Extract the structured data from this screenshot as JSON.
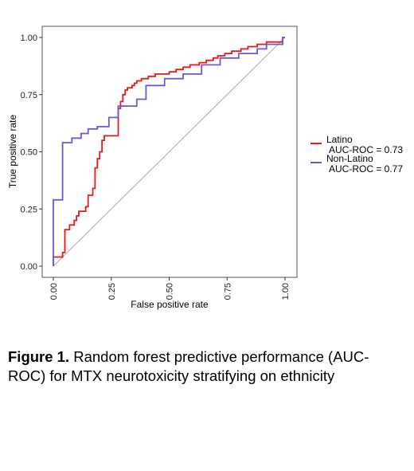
{
  "chart_data": {
    "type": "line",
    "xlabel": "False positive rate",
    "ylabel": "True positive rate",
    "xlim": [
      0,
      1
    ],
    "ylim": [
      0,
      1
    ],
    "x_ticks": [
      "0.00",
      "0.25",
      "0.50",
      "0.75",
      "1.00"
    ],
    "y_ticks": [
      "0.00",
      "0.25",
      "0.50",
      "0.75",
      "1.00"
    ],
    "grid": false,
    "legend_position": "right",
    "reference_line": {
      "from": [
        0,
        0
      ],
      "to": [
        1,
        1
      ],
      "color": "#b4b4b4"
    },
    "series": [
      {
        "name": "Latino",
        "label": "AUC-ROC = 0.73",
        "color": "#e41a1c",
        "points": [
          [
            0,
            0
          ],
          [
            0,
            0.04
          ],
          [
            0.04,
            0.04
          ],
          [
            0.04,
            0.06
          ],
          [
            0.05,
            0.06
          ],
          [
            0.05,
            0.16
          ],
          [
            0.07,
            0.16
          ],
          [
            0.07,
            0.18
          ],
          [
            0.09,
            0.18
          ],
          [
            0.09,
            0.2
          ],
          [
            0.1,
            0.2
          ],
          [
            0.1,
            0.22
          ],
          [
            0.11,
            0.22
          ],
          [
            0.11,
            0.24
          ],
          [
            0.14,
            0.24
          ],
          [
            0.14,
            0.26
          ],
          [
            0.15,
            0.26
          ],
          [
            0.15,
            0.31
          ],
          [
            0.17,
            0.31
          ],
          [
            0.17,
            0.34
          ],
          [
            0.18,
            0.34
          ],
          [
            0.18,
            0.43
          ],
          [
            0.19,
            0.43
          ],
          [
            0.19,
            0.47
          ],
          [
            0.2,
            0.47
          ],
          [
            0.2,
            0.5
          ],
          [
            0.21,
            0.5
          ],
          [
            0.21,
            0.55
          ],
          [
            0.22,
            0.55
          ],
          [
            0.22,
            0.57
          ],
          [
            0.28,
            0.57
          ],
          [
            0.28,
            0.69
          ],
          [
            0.29,
            0.69
          ],
          [
            0.29,
            0.72
          ],
          [
            0.3,
            0.72
          ],
          [
            0.3,
            0.75
          ],
          [
            0.31,
            0.75
          ],
          [
            0.31,
            0.77
          ],
          [
            0.32,
            0.77
          ],
          [
            0.32,
            0.78
          ],
          [
            0.34,
            0.78
          ],
          [
            0.34,
            0.79
          ],
          [
            0.35,
            0.79
          ],
          [
            0.35,
            0.8
          ],
          [
            0.36,
            0.8
          ],
          [
            0.36,
            0.81
          ],
          [
            0.38,
            0.81
          ],
          [
            0.38,
            0.82
          ],
          [
            0.41,
            0.82
          ],
          [
            0.41,
            0.83
          ],
          [
            0.44,
            0.83
          ],
          [
            0.44,
            0.84
          ],
          [
            0.5,
            0.84
          ],
          [
            0.5,
            0.85
          ],
          [
            0.53,
            0.85
          ],
          [
            0.53,
            0.86
          ],
          [
            0.56,
            0.86
          ],
          [
            0.56,
            0.87
          ],
          [
            0.59,
            0.87
          ],
          [
            0.59,
            0.88
          ],
          [
            0.63,
            0.88
          ],
          [
            0.63,
            0.89
          ],
          [
            0.66,
            0.89
          ],
          [
            0.66,
            0.9
          ],
          [
            0.69,
            0.9
          ],
          [
            0.69,
            0.91
          ],
          [
            0.71,
            0.91
          ],
          [
            0.71,
            0.92
          ],
          [
            0.74,
            0.92
          ],
          [
            0.74,
            0.93
          ],
          [
            0.77,
            0.93
          ],
          [
            0.77,
            0.94
          ],
          [
            0.81,
            0.94
          ],
          [
            0.81,
            0.95
          ],
          [
            0.84,
            0.95
          ],
          [
            0.84,
            0.96
          ],
          [
            0.88,
            0.96
          ],
          [
            0.88,
            0.97
          ],
          [
            0.92,
            0.97
          ],
          [
            0.92,
            0.98
          ],
          [
            0.99,
            0.98
          ],
          [
            0.99,
            1
          ],
          [
            1,
            1
          ]
        ]
      },
      {
        "name": "Non-Latino",
        "label": "AUC-ROC = 0.77",
        "color": "#6a5acd",
        "points": [
          [
            0,
            0
          ],
          [
            0,
            0.29
          ],
          [
            0.04,
            0.29
          ],
          [
            0.04,
            0.54
          ],
          [
            0.08,
            0.54
          ],
          [
            0.08,
            0.56
          ],
          [
            0.12,
            0.56
          ],
          [
            0.12,
            0.58
          ],
          [
            0.15,
            0.58
          ],
          [
            0.15,
            0.6
          ],
          [
            0.19,
            0.6
          ],
          [
            0.19,
            0.61
          ],
          [
            0.24,
            0.61
          ],
          [
            0.24,
            0.65
          ],
          [
            0.28,
            0.65
          ],
          [
            0.28,
            0.7
          ],
          [
            0.36,
            0.7
          ],
          [
            0.36,
            0.73
          ],
          [
            0.4,
            0.73
          ],
          [
            0.4,
            0.79
          ],
          [
            0.48,
            0.79
          ],
          [
            0.48,
            0.82
          ],
          [
            0.56,
            0.82
          ],
          [
            0.56,
            0.84
          ],
          [
            0.64,
            0.84
          ],
          [
            0.64,
            0.88
          ],
          [
            0.72,
            0.88
          ],
          [
            0.72,
            0.91
          ],
          [
            0.8,
            0.91
          ],
          [
            0.8,
            0.93
          ],
          [
            0.88,
            0.93
          ],
          [
            0.88,
            0.95
          ],
          [
            0.92,
            0.95
          ],
          [
            0.92,
            0.97
          ],
          [
            0.99,
            0.97
          ],
          [
            0.99,
            1
          ],
          [
            1,
            1
          ]
        ]
      }
    ]
  },
  "caption": {
    "label": "Figure 1.",
    "text": " Random forest predictive performance (AUC-ROC) for MTX neurotoxicity stratifying on ethnicity"
  }
}
